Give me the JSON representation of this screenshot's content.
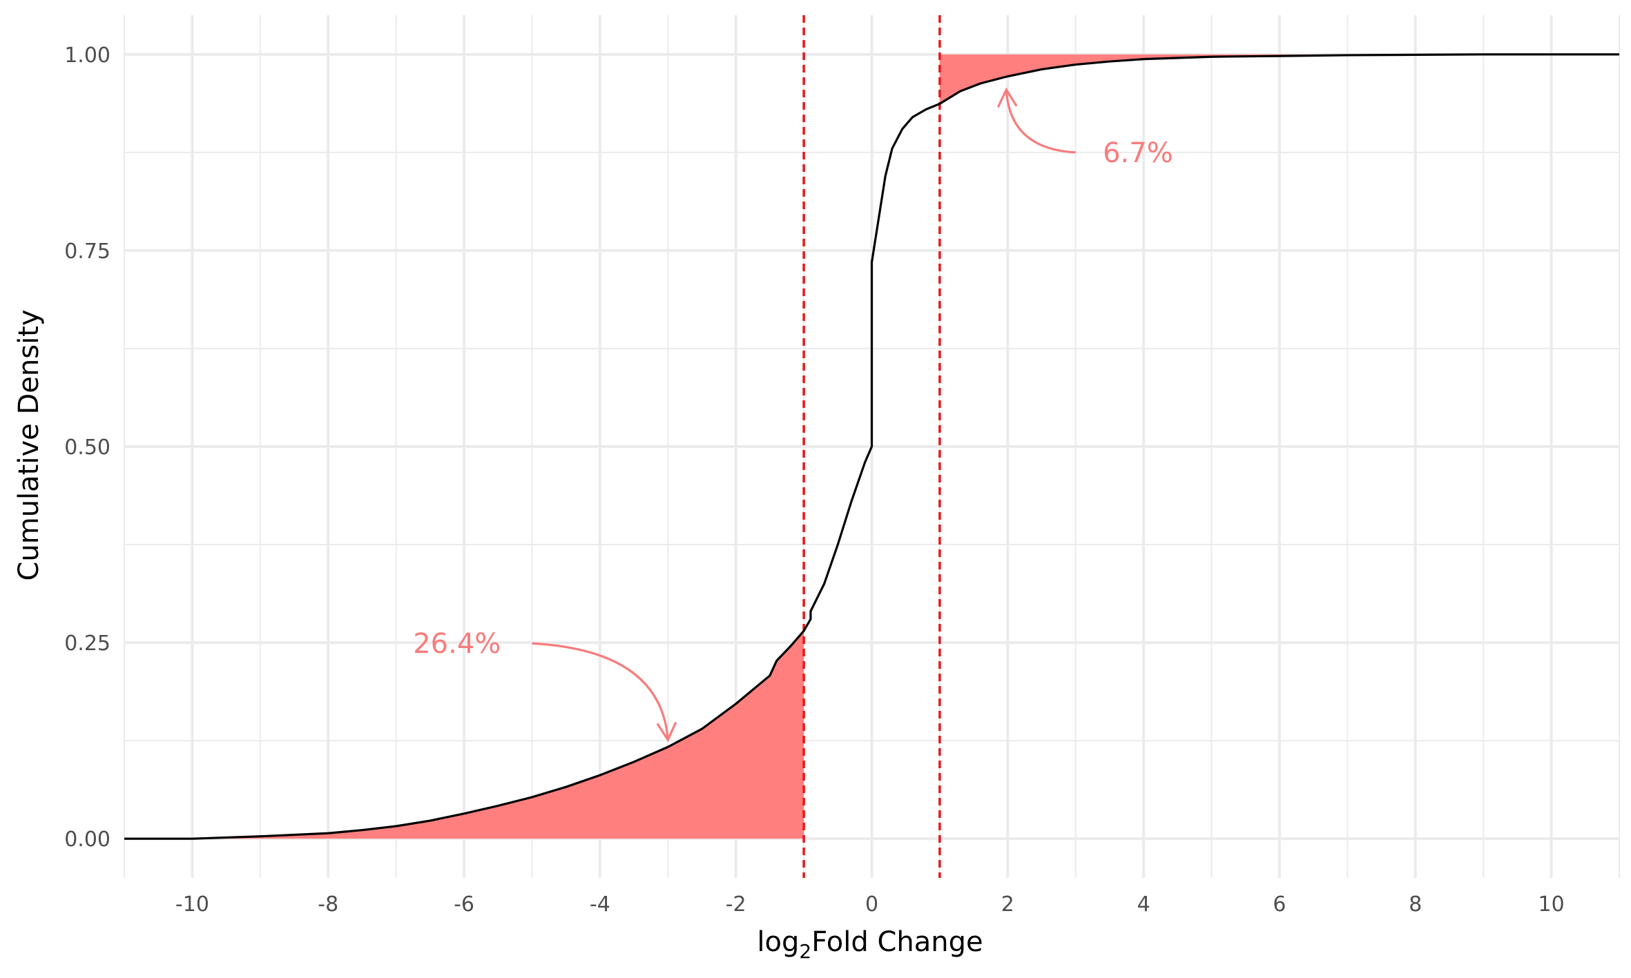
{
  "chart_data": {
    "type": "line",
    "title": "",
    "xlabel_main": "log",
    "xlabel_sub": "2",
    "xlabel_rest": "Fold Change",
    "ylabel": "Cumulative Density",
    "xlim": [
      -11,
      11
    ],
    "ylim": [
      -0.05,
      1.05
    ],
    "x_ticks": [
      -10,
      -8,
      -6,
      -4,
      -2,
      0,
      2,
      4,
      6,
      8,
      10
    ],
    "x_tick_labels": [
      "-10",
      "-8",
      "-6",
      "-4",
      "-2",
      "0",
      "2",
      "4",
      "6",
      "8",
      "10"
    ],
    "y_ticks": [
      0,
      0.25,
      0.5,
      0.75,
      1.0
    ],
    "y_tick_labels": [
      "0.00",
      "0.25",
      "0.50",
      "0.75",
      "1.00"
    ],
    "grid": true,
    "colors": {
      "line": "#000000",
      "fill": "#ff7f7f",
      "threshold": "#e8161a",
      "annotation": "#f87c7c",
      "grid": "#ebebeb"
    },
    "thresholds": [
      -1,
      1
    ],
    "series": [
      {
        "values": [
          [
            -11,
            0
          ],
          [
            -10,
            0.0
          ],
          [
            -9,
            0.003
          ],
          [
            -8,
            0.007
          ],
          [
            -7.5,
            0.011
          ],
          [
            -7,
            0.016
          ],
          [
            -6.5,
            0.023
          ],
          [
            -6,
            0.032
          ],
          [
            -5.5,
            0.042
          ],
          [
            -5,
            0.053
          ],
          [
            -4.5,
            0.066
          ],
          [
            -4,
            0.081
          ],
          [
            -3.5,
            0.098
          ],
          [
            -3,
            0.117
          ],
          [
            -2.5,
            0.14
          ],
          [
            -2,
            0.172
          ],
          [
            -1.5,
            0.208
          ],
          [
            -1.4,
            0.227
          ],
          [
            -1.2,
            0.245
          ],
          [
            -1.0,
            0.265
          ],
          [
            -0.9,
            0.28
          ],
          [
            -0.9,
            0.29
          ],
          [
            -0.7,
            0.325
          ],
          [
            -0.5,
            0.375
          ],
          [
            -0.3,
            0.43
          ],
          [
            -0.1,
            0.48
          ],
          [
            0,
            0.5
          ],
          [
            0,
            0.735
          ],
          [
            0.1,
            0.79
          ],
          [
            0.2,
            0.845
          ],
          [
            0.3,
            0.88
          ],
          [
            0.45,
            0.905
          ],
          [
            0.6,
            0.92
          ],
          [
            0.8,
            0.93
          ],
          [
            1.0,
            0.937
          ],
          [
            1.3,
            0.953
          ],
          [
            1.6,
            0.963
          ],
          [
            2,
            0.972
          ],
          [
            2.5,
            0.981
          ],
          [
            3,
            0.987
          ],
          [
            3.5,
            0.991
          ],
          [
            4,
            0.994
          ],
          [
            5,
            0.997
          ],
          [
            6,
            0.998
          ],
          [
            7,
            0.999
          ],
          [
            8,
            0.9995
          ],
          [
            9,
            1.0
          ],
          [
            11,
            1.0
          ]
        ]
      }
    ],
    "annotations": [
      {
        "text": "26.4%",
        "x": -6.75,
        "y": 0.249,
        "arrow_from": [
          -5,
          0.249
        ],
        "arrow_to": [
          -3,
          0.126
        ]
      },
      {
        "text": "6.7%",
        "x": 3.4,
        "y": 0.875,
        "arrow_from": [
          3,
          0.875
        ],
        "arrow_to": [
          1.98,
          0.955
        ]
      }
    ]
  }
}
